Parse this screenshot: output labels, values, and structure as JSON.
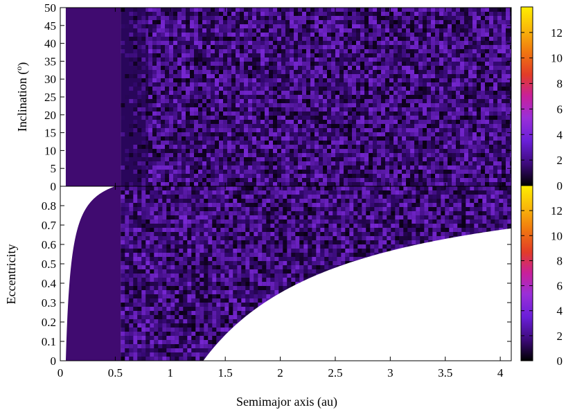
{
  "chart_data": [
    {
      "type": "heatmap",
      "panel": "top",
      "title": "",
      "xlabel": "",
      "ylabel": "Inclination (",
      "ylabel_superscript": "o",
      "ylabel_suffix": ")",
      "xlim": [
        0,
        4.1
      ],
      "ylim": [
        0,
        50
      ],
      "y_ticks": [
        "0",
        "5",
        "10",
        "15",
        "20",
        "25",
        "30",
        "35",
        "40",
        "45",
        "50"
      ],
      "colorbar": {
        "range": [
          0,
          14
        ],
        "ticks": [
          "0",
          "2",
          "4",
          "6",
          "8",
          "10",
          "12"
        ],
        "colors": [
          "#000000",
          "#3d0a7a",
          "#6a1fd8",
          "#9a2fd8",
          "#c8209b",
          "#e23c28",
          "#f07810",
          "#f9ba0a",
          "#ffee00"
        ]
      },
      "density_regions": [
        {
          "x": [
            0.05,
            0.55
          ],
          "y": [
            0,
            50
          ],
          "value": 1.2,
          "style": "uniform"
        },
        {
          "x": [
            0.55,
            0.8
          ],
          "y": [
            0,
            50
          ],
          "value": 1.3,
          "style": "transition"
        },
        {
          "x": [
            0.8,
            4.1
          ],
          "y": [
            0,
            50
          ],
          "value": 1.8,
          "style": "noisy"
        }
      ]
    },
    {
      "type": "heatmap",
      "panel": "bottom",
      "title": "",
      "xlabel": "Semimajor axis (au)",
      "ylabel": "Eccentricity",
      "xlim": [
        0,
        4.1
      ],
      "ylim": [
        0,
        0.9
      ],
      "x_ticks": [
        "0",
        "0.5",
        "1",
        "1.5",
        "2",
        "2.5",
        "3",
        "3.5",
        "4"
      ],
      "y_ticks": [
        "0",
        "0.1",
        "0.2",
        "0.3",
        "0.4",
        "0.5",
        "0.6",
        "0.7",
        "0.8"
      ],
      "colorbar": {
        "range": [
          0,
          14
        ],
        "ticks": [
          "0",
          "2",
          "4",
          "6",
          "8",
          "10",
          "12"
        ]
      },
      "allowed_region": {
        "lower_bound": "e > 1 - 1.3/a  (white region below)",
        "upper_bound": "e < 1 - 0.05/a  (white region above, left)",
        "perihelion_au": 1.3,
        "inner_limit_au": 0.05
      },
      "density_regions": [
        {
          "x": [
            0.05,
            0.55
          ],
          "value": 1.2,
          "style": "uniform"
        },
        {
          "x": [
            0.55,
            4.1
          ],
          "value": 1.8,
          "style": "noisy"
        }
      ]
    }
  ]
}
